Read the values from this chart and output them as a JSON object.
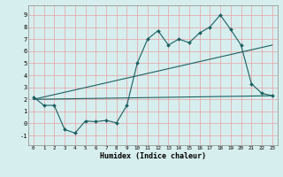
{
  "title": "",
  "xlabel": "Humidex (Indice chaleur)",
  "ylabel": "",
  "bg_color": "#d7eeee",
  "grid_color": "#e8a0a8",
  "line_color": "#1a6060",
  "xlim": [
    -0.5,
    23.5
  ],
  "ylim": [
    -1.8,
    9.8
  ],
  "xticks": [
    0,
    1,
    2,
    3,
    4,
    5,
    6,
    7,
    8,
    9,
    10,
    11,
    12,
    13,
    14,
    15,
    16,
    17,
    18,
    19,
    20,
    21,
    22,
    23
  ],
  "yticks": [
    -1,
    0,
    1,
    2,
    3,
    4,
    5,
    6,
    7,
    8,
    9
  ],
  "line1_x": [
    0,
    1,
    2,
    3,
    4,
    5,
    6,
    7,
    8,
    9,
    10,
    11,
    12,
    13,
    14,
    15,
    16,
    17,
    18,
    19,
    20,
    21,
    22,
    23
  ],
  "line1_y": [
    2.2,
    1.5,
    1.5,
    -0.5,
    -0.8,
    0.2,
    0.15,
    0.25,
    0.05,
    1.5,
    5.0,
    7.0,
    7.7,
    6.5,
    7.0,
    6.7,
    7.5,
    8.0,
    9.0,
    7.8,
    6.5,
    3.3,
    2.5,
    2.3
  ],
  "line2_x": [
    0,
    23
  ],
  "line2_y": [
    2.0,
    2.3
  ],
  "line3_x": [
    0,
    23
  ],
  "line3_y": [
    2.0,
    6.5
  ]
}
